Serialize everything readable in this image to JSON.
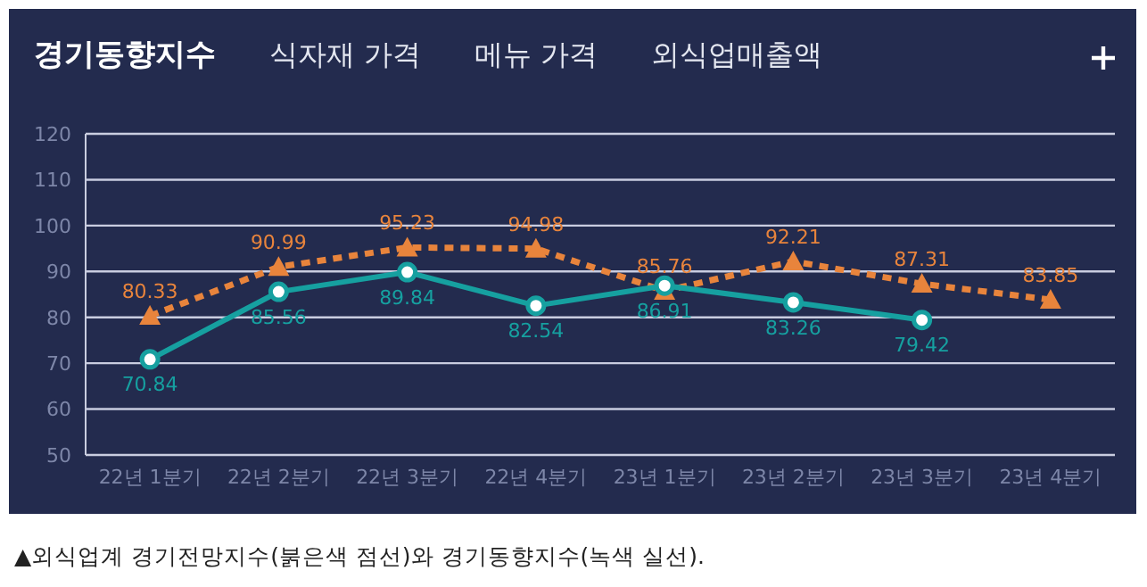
{
  "chart_data": {
    "type": "line",
    "title": "경기동향지수",
    "annotations": [
      "식자재 가격",
      "메뉴 가격",
      "외식업매출액",
      "▲외식업계 경기전망지수(붉은색 점선)와 경기동향지수(녹색 실선)."
    ],
    "categories": [
      "22년 1분기",
      "22년 2분기",
      "22년 3분기",
      "22년 4분기",
      "23년 1분기",
      "23년 2분기",
      "23년 3분기",
      "23년 4분기"
    ],
    "series": [
      {
        "color": "#e8843c",
        "marker": "triangle",
        "line_style": "dotted",
        "values": [
          80.33,
          90.99,
          95.23,
          94.98,
          85.76,
          92.21,
          87.31,
          83.85
        ]
      },
      {
        "color": "#16a0a0",
        "marker": "circle",
        "line_style": "solid",
        "values": [
          70.84,
          85.56,
          89.84,
          82.54,
          86.91,
          83.26,
          79.42,
          null
        ]
      }
    ],
    "ylim": [
      50,
      120
    ],
    "yticks": [
      50,
      60,
      70,
      80,
      90,
      100,
      110,
      120
    ],
    "grid": "y",
    "data_labels": true
  }
}
